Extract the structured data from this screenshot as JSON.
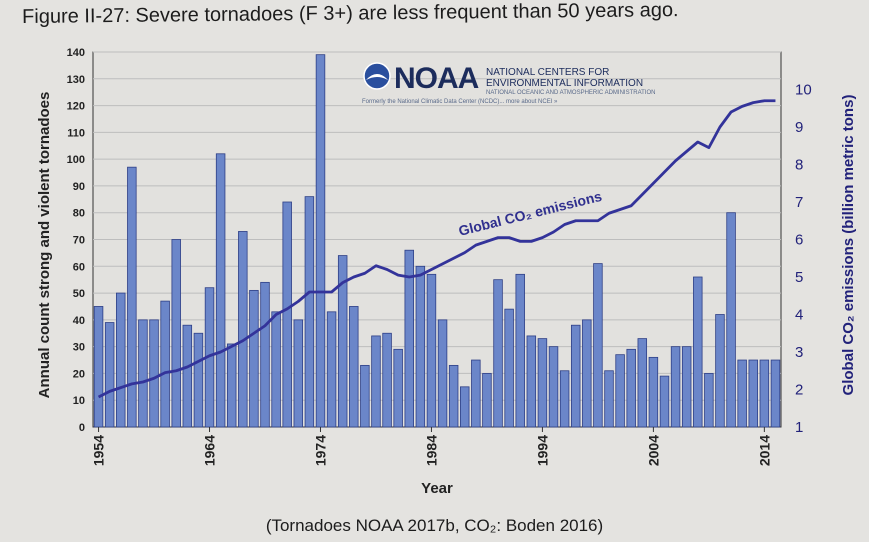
{
  "figure": {
    "title": "Figure II-27: Severe tornadoes (F 3+) are less frequent than 50 years ago.",
    "caption": "(Tornadoes NOAA 2017b, CO₂: Boden 2016)"
  },
  "logo": {
    "name": "NOAA",
    "line1": "NATIONAL CENTERS FOR",
    "line2": "ENVIRONMENTAL INFORMATION",
    "line3": "NATIONAL OCEANIC AND ATMOSPHERIC ADMINISTRATION",
    "subline": "Formerly the National Climatic Data Center (NCDC)... more about NCEI »"
  },
  "colors": {
    "bar_fill": "#6b86c9",
    "bar_stroke": "#2e3f86",
    "line": "#33339a",
    "grid": "#bdbdbd"
  },
  "chart_data": {
    "type": "bar",
    "xlabel": "Year",
    "ylabel": "Annual count strong and violent tornadoes",
    "y2label": "Global CO₂ emissions (billion metric tons)",
    "ylim": [
      0,
      140
    ],
    "y2lim": [
      1,
      11
    ],
    "grid": true,
    "x_ticks": [
      "1954",
      "1964",
      "1974",
      "1984",
      "1994",
      "2004",
      "2014"
    ],
    "y_ticks": [
      0,
      10,
      20,
      30,
      40,
      50,
      60,
      70,
      80,
      90,
      100,
      110,
      120,
      130,
      140
    ],
    "y2_ticks": [
      1,
      2,
      3,
      4,
      5,
      6,
      7,
      8,
      9,
      10
    ],
    "years": [
      1954,
      1955,
      1956,
      1957,
      1958,
      1959,
      1960,
      1961,
      1962,
      1963,
      1964,
      1965,
      1966,
      1967,
      1968,
      1969,
      1970,
      1971,
      1972,
      1973,
      1974,
      1975,
      1976,
      1977,
      1978,
      1979,
      1980,
      1981,
      1982,
      1983,
      1984,
      1985,
      1986,
      1987,
      1988,
      1989,
      1990,
      1991,
      1992,
      1993,
      1994,
      1995,
      1996,
      1997,
      1998,
      1999,
      2000,
      2001,
      2002,
      2003,
      2004,
      2005,
      2006,
      2007,
      2008,
      2009,
      2010,
      2011,
      2012,
      2013,
      2014,
      2015
    ],
    "series": [
      {
        "name": "Tornadoes",
        "type": "bar",
        "values": [
          45,
          39,
          50,
          97,
          40,
          40,
          47,
          70,
          38,
          35,
          52,
          102,
          31,
          73,
          51,
          54,
          43,
          84,
          40,
          86,
          139,
          43,
          64,
          45,
          23,
          34,
          35,
          29,
          66,
          60,
          57,
          40,
          23,
          15,
          25,
          20,
          55,
          44,
          57,
          34,
          33,
          30,
          21,
          38,
          40,
          61,
          21,
          27,
          29,
          33,
          26,
          19,
          30,
          30,
          56,
          20,
          42,
          80,
          25,
          25,
          25,
          25
        ]
      },
      {
        "name": "Global CO₂ emissions",
        "type": "line",
        "values": [
          1.8,
          1.95,
          2.05,
          2.15,
          2.2,
          2.3,
          2.45,
          2.5,
          2.6,
          2.75,
          2.9,
          3.0,
          3.15,
          3.3,
          3.5,
          3.7,
          4.0,
          4.15,
          4.35,
          4.6,
          4.6,
          4.6,
          4.85,
          5.0,
          5.1,
          5.3,
          5.2,
          5.05,
          5.0,
          5.05,
          5.2,
          5.35,
          5.5,
          5.65,
          5.85,
          5.95,
          6.05,
          6.05,
          5.95,
          5.95,
          6.05,
          6.2,
          6.4,
          6.5,
          6.5,
          6.5,
          6.7,
          6.8,
          6.9,
          7.2,
          7.5,
          7.8,
          8.1,
          8.35,
          8.6,
          8.45,
          9.0,
          9.4,
          9.55,
          9.65,
          9.7,
          9.7
        ]
      }
    ]
  }
}
